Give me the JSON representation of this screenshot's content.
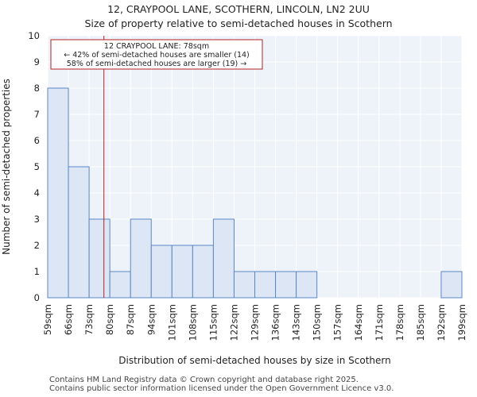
{
  "chart_data": {
    "type": "bar",
    "title": "12, CRAYPOOL LANE, SCOTHERN, LINCOLN, LN2 2UU",
    "subtitle": "Size of property relative to semi-detached houses in Scothern",
    "xlabel": "Distribution of semi-detached houses by size in Scothern",
    "ylabel": "Number of semi-detached properties",
    "bin_edges": [
      59,
      66,
      73,
      80,
      87,
      94,
      101,
      108,
      115,
      122,
      129,
      136,
      143,
      150,
      157,
      164,
      171,
      178,
      185,
      192,
      199
    ],
    "x_tick_labels": [
      "59sqm",
      "66sqm",
      "73sqm",
      "80sqm",
      "87sqm",
      "94sqm",
      "101sqm",
      "108sqm",
      "115sqm",
      "122sqm",
      "129sqm",
      "136sqm",
      "143sqm",
      "150sqm",
      "157sqm",
      "164sqm",
      "171sqm",
      "178sqm",
      "185sqm",
      "192sqm",
      "199sqm"
    ],
    "values": [
      8,
      5,
      3,
      1,
      3,
      2,
      2,
      2,
      3,
      1,
      1,
      1,
      1,
      0,
      0,
      0,
      0,
      0,
      0,
      1
    ],
    "ylim": [
      0,
      10
    ],
    "y_ticks": [
      0,
      1,
      2,
      3,
      4,
      5,
      6,
      7,
      8,
      9,
      10
    ],
    "grid": true,
    "bar_color": "#dce6f5",
    "bar_edge_color": "#5b87c5",
    "marker": {
      "value": 78,
      "color": "#b22222",
      "annotation": [
        "12 CRAYPOOL LANE: 78sqm",
        "← 42% of semi-detached houses are smaller (14)",
        "58% of semi-detached houses are larger (19) →"
      ]
    }
  },
  "footer": {
    "line1": "Contains HM Land Registry data © Crown copyright and database right 2025.",
    "line2": "Contains public sector information licensed under the Open Government Licence v3.0."
  }
}
